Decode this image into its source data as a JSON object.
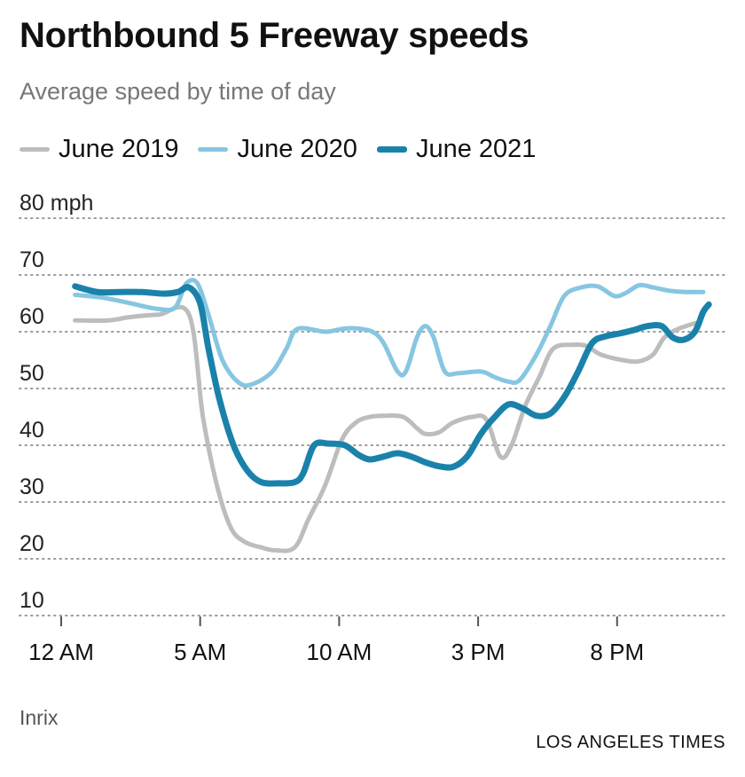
{
  "chart_data": {
    "type": "line",
    "title": "Northbound 5 Freeway speeds",
    "subtitle": "Average speed by time of day",
    "y_unit": "mph",
    "ylim": [
      10,
      80
    ],
    "y_ticks": [
      80,
      70,
      60,
      50,
      40,
      30,
      20,
      10
    ],
    "xlim": [
      -1.5,
      23.9
    ],
    "x_ticks": [
      {
        "hour": 0,
        "label": "12 AM"
      },
      {
        "hour": 5,
        "label": "5 AM"
      },
      {
        "hour": 10,
        "label": "10 AM"
      },
      {
        "hour": 15,
        "label": "3 PM"
      },
      {
        "hour": 20,
        "label": "8 PM"
      }
    ],
    "grid": "horizontal dotted",
    "legend_position": "top-left",
    "source": "Inrix",
    "credit": "LOS ANGELES TIMES",
    "series": [
      {
        "name": "June 2019",
        "color": "#bdbdbd",
        "width": 5,
        "points": [
          [
            0.5,
            62
          ],
          [
            1.7,
            62
          ],
          [
            2.5,
            62.6
          ],
          [
            3.5,
            63
          ],
          [
            4.6,
            63
          ],
          [
            5.1,
            45
          ],
          [
            5.6,
            33
          ],
          [
            6.1,
            25.5
          ],
          [
            6.6,
            23
          ],
          [
            7.2,
            22
          ],
          [
            7.7,
            21.5
          ],
          [
            8.4,
            22
          ],
          [
            8.9,
            27
          ],
          [
            9.5,
            33
          ],
          [
            10.1,
            41
          ],
          [
            10.6,
            44
          ],
          [
            11.1,
            45
          ],
          [
            11.6,
            45.2
          ],
          [
            12.3,
            45
          ],
          [
            12.8,
            43
          ],
          [
            13.1,
            42
          ],
          [
            13.6,
            42.3
          ],
          [
            14.1,
            44
          ],
          [
            14.8,
            45
          ],
          [
            15.3,
            44.5
          ],
          [
            15.8,
            38
          ],
          [
            16.2,
            40
          ],
          [
            16.7,
            47
          ],
          [
            17.2,
            52
          ],
          [
            17.7,
            57
          ],
          [
            18.4,
            57.7
          ],
          [
            18.9,
            57.5
          ],
          [
            19.4,
            56
          ],
          [
            20.2,
            55
          ],
          [
            20.8,
            54.8
          ],
          [
            21.3,
            56
          ],
          [
            21.7,
            59
          ],
          [
            22.2,
            60.5
          ],
          [
            22.8,
            61.5
          ]
        ]
      },
      {
        "name": "June 2020",
        "color": "#86c6e1",
        "width": 5,
        "points": [
          [
            0.5,
            66.5
          ],
          [
            1.5,
            66
          ],
          [
            2.5,
            65
          ],
          [
            3.5,
            64
          ],
          [
            4.1,
            64.3
          ],
          [
            4.5,
            68.5
          ],
          [
            4.9,
            68.5
          ],
          [
            5.3,
            63
          ],
          [
            5.8,
            55
          ],
          [
            6.4,
            51
          ],
          [
            6.9,
            50.8
          ],
          [
            7.6,
            53
          ],
          [
            8.1,
            57
          ],
          [
            8.5,
            60.5
          ],
          [
            9.5,
            60
          ],
          [
            10.1,
            60.5
          ],
          [
            10.6,
            60.6
          ],
          [
            11.2,
            60
          ],
          [
            11.6,
            58
          ],
          [
            12.1,
            53
          ],
          [
            12.4,
            53
          ],
          [
            12.8,
            59
          ],
          [
            13.1,
            61
          ],
          [
            13.4,
            59
          ],
          [
            13.8,
            53
          ],
          [
            14.3,
            52.7
          ],
          [
            15.1,
            53
          ],
          [
            15.6,
            52
          ],
          [
            16.1,
            51.2
          ],
          [
            16.5,
            51.5
          ],
          [
            17.1,
            56
          ],
          [
            17.6,
            61
          ],
          [
            18.1,
            66.3
          ],
          [
            18.7,
            67.8
          ],
          [
            19.3,
            68
          ],
          [
            19.9,
            66.3
          ],
          [
            20.3,
            66.8
          ],
          [
            20.8,
            68.2
          ],
          [
            21.3,
            67.8
          ],
          [
            21.9,
            67.2
          ],
          [
            22.5,
            67
          ],
          [
            23.1,
            67
          ]
        ]
      },
      {
        "name": "June 2021",
        "color": "#1a82aa",
        "width": 7,
        "points": [
          [
            0.5,
            68
          ],
          [
            1.3,
            67
          ],
          [
            2.1,
            67
          ],
          [
            2.9,
            67
          ],
          [
            3.7,
            66.7
          ],
          [
            4.2,
            67
          ],
          [
            4.6,
            67.8
          ],
          [
            5.0,
            65
          ],
          [
            5.3,
            57
          ],
          [
            5.7,
            48
          ],
          [
            6.2,
            40
          ],
          [
            6.7,
            35.5
          ],
          [
            7.2,
            33.5
          ],
          [
            7.8,
            33.3
          ],
          [
            8.4,
            33.5
          ],
          [
            8.7,
            35
          ],
          [
            9.1,
            40
          ],
          [
            9.6,
            40.3
          ],
          [
            10.2,
            40
          ],
          [
            10.7,
            38.3
          ],
          [
            11.1,
            37.5
          ],
          [
            11.6,
            38
          ],
          [
            12.1,
            38.6
          ],
          [
            12.6,
            38
          ],
          [
            13.1,
            37
          ],
          [
            13.6,
            36.3
          ],
          [
            14.1,
            36.2
          ],
          [
            14.6,
            38
          ],
          [
            15.1,
            42
          ],
          [
            15.6,
            45
          ],
          [
            16.1,
            47.2
          ],
          [
            16.6,
            46.5
          ],
          [
            17.1,
            45.2
          ],
          [
            17.6,
            45.6
          ],
          [
            18.1,
            48.5
          ],
          [
            18.6,
            53
          ],
          [
            19.1,
            58
          ],
          [
            19.6,
            59.2
          ],
          [
            20.1,
            59.7
          ],
          [
            20.6,
            60.3
          ],
          [
            21.1,
            61
          ],
          [
            21.6,
            61
          ],
          [
            22.0,
            59
          ],
          [
            22.4,
            58.6
          ],
          [
            22.8,
            60
          ],
          [
            23.1,
            63.5
          ],
          [
            23.3,
            64.8
          ]
        ]
      }
    ]
  }
}
